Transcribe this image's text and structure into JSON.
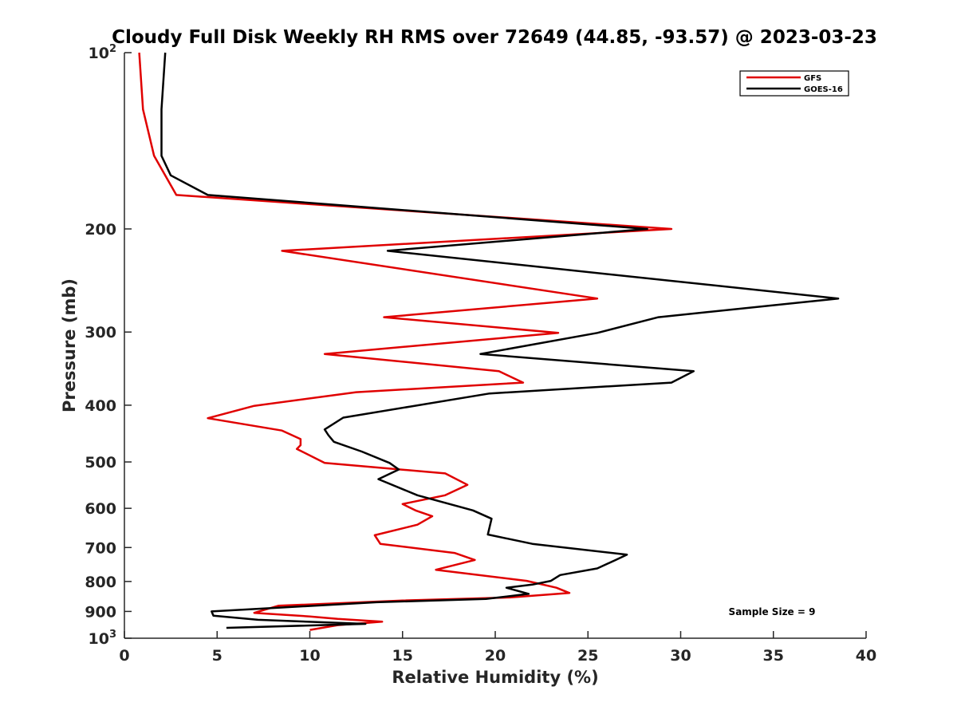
{
  "chart_data": {
    "type": "line",
    "title": "Cloudy Full Disk Weekly RH RMS over 72649 (44.85, -93.57) @ 2023-03-23",
    "xlabel": "Relative Humidity (%)",
    "ylabel": "Pressure (mb)",
    "xlim": [
      0,
      40
    ],
    "ylim": [
      100,
      1000
    ],
    "y_scale": "log",
    "y_reversed": true,
    "grid": false,
    "legend_position": "top-right",
    "x_ticks": [
      "0",
      "5",
      "10",
      "15",
      "20",
      "25",
      "30",
      "35",
      "40"
    ],
    "y_ticks": [
      {
        "value": 100,
        "base": "10",
        "exp": "2"
      },
      {
        "value": 200,
        "text": "200"
      },
      {
        "value": 300,
        "text": "300"
      },
      {
        "value": 400,
        "text": "400"
      },
      {
        "value": 500,
        "text": "500"
      },
      {
        "value": 600,
        "text": "600"
      },
      {
        "value": 700,
        "text": "700"
      },
      {
        "value": 800,
        "text": "800"
      },
      {
        "value": 900,
        "text": "900"
      },
      {
        "value": 1000,
        "base": "10",
        "exp": "3"
      }
    ],
    "annotation": "Sample Size = 9",
    "series": [
      {
        "name": "GFS",
        "color": "#e00000",
        "points": [
          [
            0.8,
            100
          ],
          [
            1.0,
            125
          ],
          [
            1.6,
            150
          ],
          [
            2.8,
            175
          ],
          [
            29.5,
            200
          ],
          [
            8.5,
            218
          ],
          [
            25.5,
            263
          ],
          [
            14.0,
            283
          ],
          [
            23.4,
            301
          ],
          [
            10.8,
            327
          ],
          [
            20.2,
            350
          ],
          [
            21.5,
            366
          ],
          [
            12.5,
            380
          ],
          [
            7.0,
            401
          ],
          [
            4.5,
            421
          ],
          [
            8.5,
            442
          ],
          [
            9.5,
            457
          ],
          [
            9.5,
            468
          ],
          [
            9.3,
            475
          ],
          [
            10.8,
            502
          ],
          [
            17.3,
            523
          ],
          [
            18.5,
            547
          ],
          [
            17.3,
            570
          ],
          [
            15.0,
            590
          ],
          [
            15.7,
            605
          ],
          [
            16.6,
            619
          ],
          [
            15.8,
            640
          ],
          [
            13.5,
            667
          ],
          [
            13.8,
            690
          ],
          [
            17.8,
            715
          ],
          [
            18.9,
            735
          ],
          [
            16.8,
            764
          ],
          [
            21.7,
            798
          ],
          [
            23.3,
            820
          ],
          [
            24.0,
            837
          ],
          [
            20.8,
            852
          ],
          [
            15.0,
            862
          ],
          [
            8.3,
            880
          ],
          [
            7.0,
            905
          ],
          [
            10.0,
            918
          ],
          [
            11.5,
            927
          ],
          [
            13.9,
            937
          ],
          [
            11.5,
            950
          ],
          [
            10.0,
            968
          ]
        ]
      },
      {
        "name": "GOES-16",
        "color": "#000000",
        "points": [
          [
            2.2,
            100
          ],
          [
            2.0,
            125
          ],
          [
            2.0,
            150
          ],
          [
            2.5,
            162
          ],
          [
            4.5,
            175
          ],
          [
            28.2,
            200
          ],
          [
            14.2,
            218
          ],
          [
            38.5,
            263
          ],
          [
            28.8,
            283
          ],
          [
            25.5,
            301
          ],
          [
            19.2,
            327
          ],
          [
            30.7,
            350
          ],
          [
            29.5,
            366
          ],
          [
            19.7,
            382
          ],
          [
            11.8,
            420
          ],
          [
            10.8,
            440
          ],
          [
            11.0,
            450
          ],
          [
            11.3,
            462
          ],
          [
            12.8,
            480
          ],
          [
            14.3,
            502
          ],
          [
            14.8,
            515
          ],
          [
            13.7,
            535
          ],
          [
            15.8,
            570
          ],
          [
            18.8,
            605
          ],
          [
            19.8,
            625
          ],
          [
            19.6,
            665
          ],
          [
            22.0,
            690
          ],
          [
            27.1,
            720
          ],
          [
            26.5,
            735
          ],
          [
            25.5,
            760
          ],
          [
            23.5,
            780
          ],
          [
            23.0,
            798
          ],
          [
            22.0,
            810
          ],
          [
            20.6,
            820
          ],
          [
            21.8,
            840
          ],
          [
            19.5,
            857
          ],
          [
            13.6,
            868
          ],
          [
            4.7,
            900
          ],
          [
            4.8,
            915
          ],
          [
            7.2,
            930
          ],
          [
            13.0,
            945
          ],
          [
            5.5,
            960
          ]
        ]
      }
    ]
  }
}
